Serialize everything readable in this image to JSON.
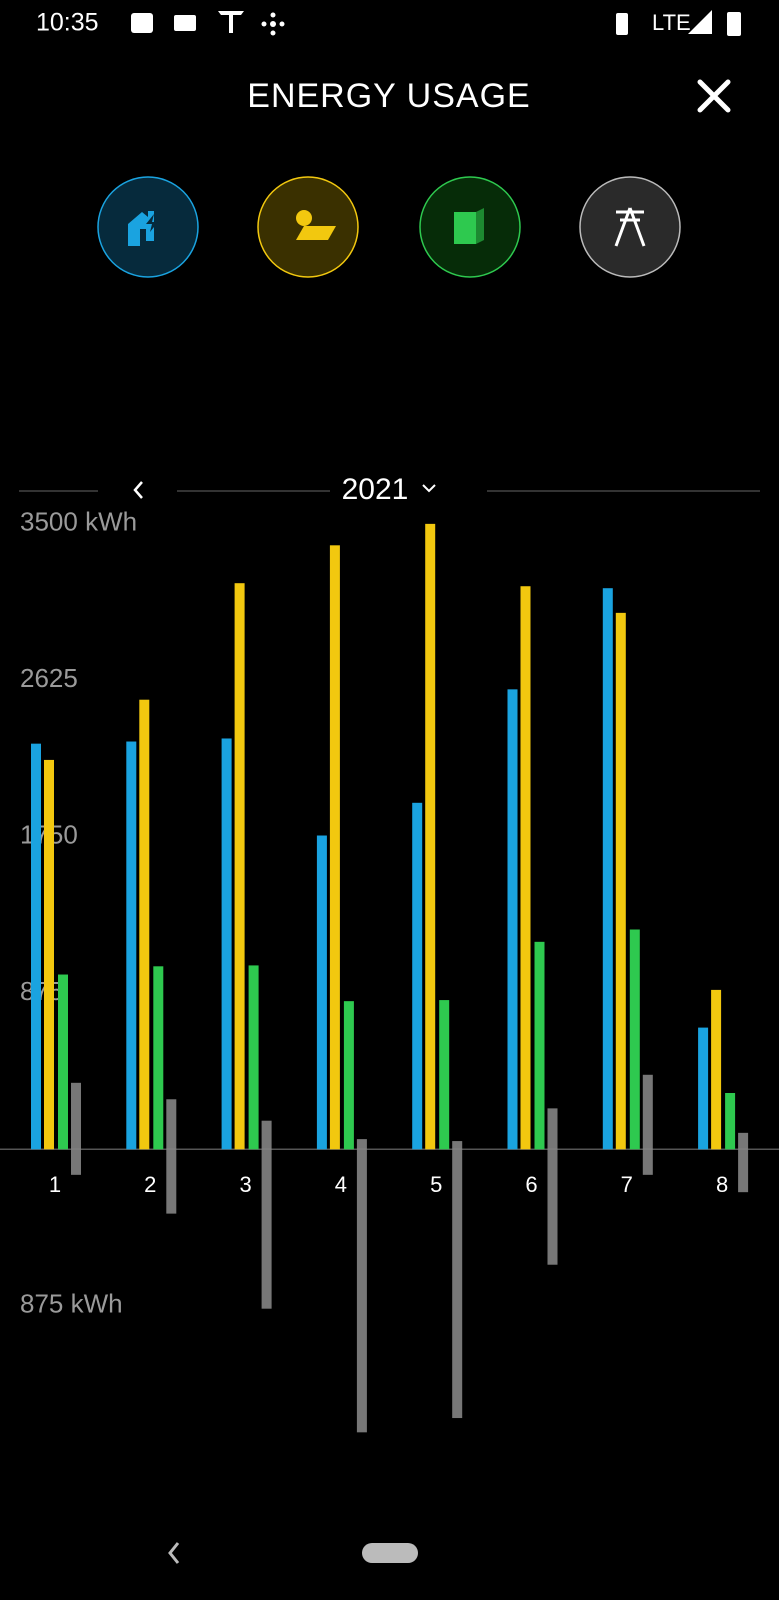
{
  "status_bar": {
    "time": "10:35",
    "network": "LTE"
  },
  "header": {
    "title": "ENERGY USAGE"
  },
  "period": {
    "year": "2021"
  },
  "chart_data": {
    "type": "bar",
    "categories": [
      "1",
      "2",
      "3",
      "4",
      "5",
      "6",
      "7",
      "8"
    ],
    "series": [
      {
        "color": "#1aa3e0",
        "values": [
          2270,
          2282,
          2299,
          1756,
          1939,
          2574,
          3140,
          681
        ]
      },
      {
        "color": "#f2c80f",
        "values": [
          2179,
          2516,
          3168,
          3380,
          3500,
          3151,
          3002,
          892
        ]
      },
      {
        "color": "#2ec94f",
        "values": [
          978,
          1024,
          1029,
          829,
          835,
          1161,
          1230,
          315
        ]
      },
      {
        "color": "#8c8c8c",
        "values": [
          372,
          280,
          160,
          57,
          46,
          229,
          417,
          92
        ]
      },
      {
        "color": "#8c8c8c",
        "values": [
          -143,
          -360,
          -892,
          -1584,
          -1504,
          -646,
          -143,
          -240
        ]
      }
    ],
    "ylim": [
      -1750,
      3600
    ],
    "yticks": [
      {
        "value": 3500,
        "label": "3500 kWh"
      },
      2625,
      1750,
      875,
      {
        "value": -875,
        "label": "875 kWh"
      }
    ],
    "grid": false
  }
}
